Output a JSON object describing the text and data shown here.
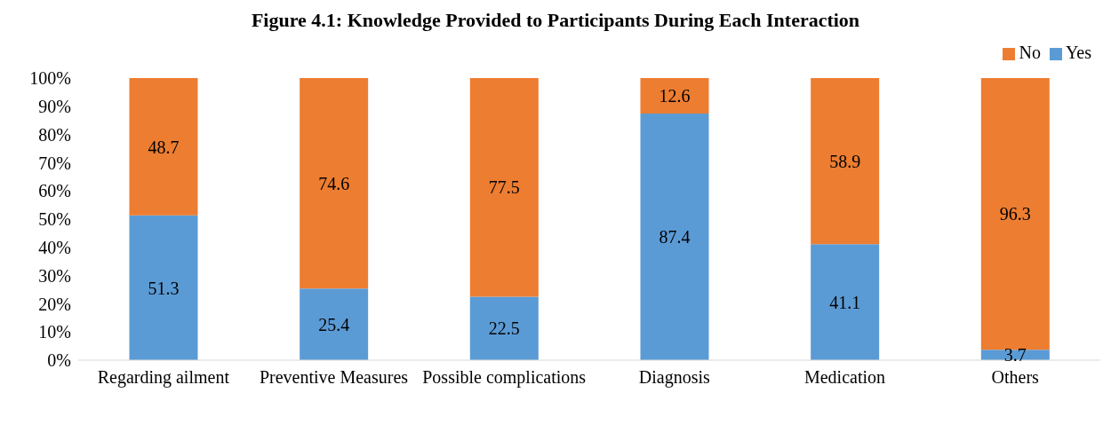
{
  "chart_data": {
    "type": "bar",
    "title": "Figure 4.1: Knowledge Provided to Participants During Each Interaction",
    "categories": [
      "Regarding ailment",
      "Preventive Measures",
      "Possible complications",
      "Diagnosis",
      "Medication",
      "Others"
    ],
    "series": [
      {
        "name": "Yes",
        "color": "#5b9bd5",
        "values": [
          51.3,
          25.4,
          22.5,
          87.4,
          41.1,
          3.7
        ]
      },
      {
        "name": "No",
        "color": "#ed7d31",
        "values": [
          48.7,
          74.6,
          77.5,
          12.6,
          58.9,
          96.3
        ]
      }
    ],
    "stacked": true,
    "data_labels": true,
    "legend": "top right",
    "grid": false,
    "ylim": [
      0,
      100
    ],
    "yticks": [
      {
        "value": 0,
        "label": "0%"
      },
      {
        "value": 10,
        "label": "10%"
      },
      {
        "value": 20,
        "label": "20%"
      },
      {
        "value": 30,
        "label": "30%"
      },
      {
        "value": 40,
        "label": "40%"
      },
      {
        "value": 50,
        "label": "50%"
      },
      {
        "value": 60,
        "label": "60%"
      },
      {
        "value": 70,
        "label": "70%"
      },
      {
        "value": 80,
        "label": "80%"
      },
      {
        "value": 90,
        "label": "90%"
      },
      {
        "value": 100,
        "label": "100%"
      }
    ]
  }
}
